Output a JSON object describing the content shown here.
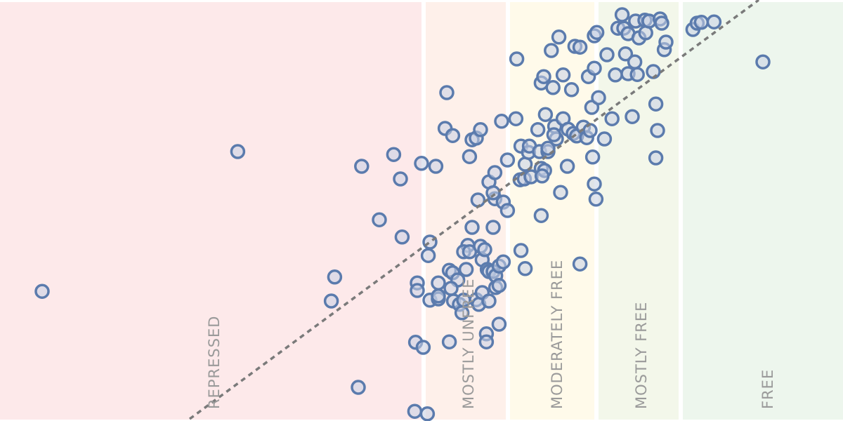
{
  "chart_data": {
    "type": "scatter",
    "title": "",
    "xlabel": "",
    "ylabel": "",
    "xlim": [
      0,
      100
    ],
    "ylim": [
      0,
      100
    ],
    "grid": false,
    "bands": [
      {
        "label": "REPRESSED",
        "from": 0,
        "to": 50,
        "color": "#fde9ea"
      },
      {
        "label": "MOSTLY UNFREE",
        "from": 50.5,
        "to": 60,
        "color": "#fef0ea"
      },
      {
        "label": "MODERATELY FREE",
        "from": 60.5,
        "to": 70.5,
        "color": "#fffaea"
      },
      {
        "label": "MOSTLY FREE",
        "from": 71,
        "to": 80.5,
        "color": "#f3f7ea"
      },
      {
        "label": "FREE",
        "from": 81,
        "to": 100,
        "color": "#edf6ed"
      }
    ],
    "trendline": {
      "x": [
        22.5,
        90
      ],
      "y": [
        0.5,
        100
      ]
    },
    "points": [
      [
        5.0,
        30.8
      ],
      [
        28.2,
        64.0
      ],
      [
        39.7,
        34.2
      ],
      [
        39.3,
        28.5
      ],
      [
        42.5,
        8.0
      ],
      [
        42.9,
        60.5
      ],
      [
        45.0,
        47.8
      ],
      [
        46.7,
        63.3
      ],
      [
        47.5,
        57.5
      ],
      [
        47.7,
        43.7
      ],
      [
        49.2,
        2.3
      ],
      [
        50.7,
        1.7
      ],
      [
        49.3,
        18.7
      ],
      [
        50.2,
        17.5
      ],
      [
        49.5,
        32.8
      ],
      [
        49.5,
        31.0
      ],
      [
        50.0,
        61.2
      ],
      [
        51.7,
        60.5
      ],
      [
        50.8,
        39.3
      ],
      [
        51.0,
        42.5
      ],
      [
        51.0,
        28.7
      ],
      [
        52.0,
        29.0
      ],
      [
        52.0,
        32.8
      ],
      [
        52.0,
        29.7
      ],
      [
        53.3,
        35.8
      ],
      [
        53.7,
        35.2
      ],
      [
        54.3,
        33.5
      ],
      [
        53.3,
        18.8
      ],
      [
        53.5,
        31.5
      ],
      [
        53.8,
        28.5
      ],
      [
        52.8,
        69.5
      ],
      [
        53.7,
        67.8
      ],
      [
        53.0,
        78.0
      ],
      [
        54.5,
        27.7
      ],
      [
        54.8,
        25.7
      ],
      [
        55.0,
        28.7
      ],
      [
        55.3,
        36.0
      ],
      [
        55.5,
        41.7
      ],
      [
        55.0,
        40.2
      ],
      [
        55.7,
        40.2
      ],
      [
        55.7,
        62.8
      ],
      [
        56.0,
        66.8
      ],
      [
        56.5,
        67.2
      ],
      [
        57.0,
        69.2
      ],
      [
        56.5,
        28.8
      ],
      [
        56.8,
        27.7
      ],
      [
        57.2,
        30.5
      ],
      [
        56.0,
        46.0
      ],
      [
        56.7,
        52.5
      ],
      [
        57.0,
        41.5
      ],
      [
        57.2,
        38.3
      ],
      [
        57.5,
        40.7
      ],
      [
        57.7,
        20.7
      ],
      [
        58.0,
        28.5
      ],
      [
        57.8,
        36.0
      ],
      [
        57.7,
        18.8
      ],
      [
        58.0,
        56.8
      ],
      [
        58.7,
        52.8
      ],
      [
        58.7,
        59.0
      ],
      [
        58.5,
        54.2
      ],
      [
        58.5,
        46.0
      ],
      [
        58.0,
        35.5
      ],
      [
        58.5,
        35.5
      ],
      [
        58.8,
        34.5
      ],
      [
        58.8,
        31.7
      ],
      [
        59.2,
        32.2
      ],
      [
        59.2,
        36.8
      ],
      [
        59.7,
        37.8
      ],
      [
        59.2,
        23.0
      ],
      [
        59.7,
        52.0
      ],
      [
        60.2,
        50.0
      ],
      [
        59.5,
        71.2
      ],
      [
        60.2,
        62.0
      ],
      [
        61.2,
        71.8
      ],
      [
        61.8,
        40.5
      ],
      [
        62.3,
        36.2
      ],
      [
        61.3,
        86.0
      ],
      [
        61.7,
        57.3
      ],
      [
        61.8,
        65.3
      ],
      [
        62.3,
        61.0
      ],
      [
        62.7,
        63.8
      ],
      [
        62.8,
        65.3
      ],
      [
        62.2,
        57.5
      ],
      [
        63.0,
        58.0
      ],
      [
        63.8,
        69.2
      ],
      [
        64.2,
        80.3
      ],
      [
        64.5,
        81.8
      ],
      [
        64.2,
        60.0
      ],
      [
        64.0,
        64.0
      ],
      [
        64.6,
        59.5
      ],
      [
        64.3,
        58.2
      ],
      [
        64.2,
        48.8
      ],
      [
        64.7,
        72.8
      ],
      [
        65.0,
        64.0
      ],
      [
        65.0,
        64.8
      ],
      [
        65.6,
        79.2
      ],
      [
        65.4,
        88.0
      ],
      [
        66.3,
        91.2
      ],
      [
        65.8,
        70.0
      ],
      [
        66.0,
        67.0
      ],
      [
        65.7,
        68.0
      ],
      [
        66.5,
        54.3
      ],
      [
        66.8,
        82.2
      ],
      [
        66.8,
        71.8
      ],
      [
        67.8,
        78.7
      ],
      [
        67.3,
        60.5
      ],
      [
        67.4,
        69.3
      ],
      [
        68.2,
        89.0
      ],
      [
        68.8,
        88.8
      ],
      [
        68.0,
        68.3
      ],
      [
        68.4,
        67.7
      ],
      [
        68.8,
        37.3
      ],
      [
        69.2,
        69.8
      ],
      [
        69.6,
        67.3
      ],
      [
        70.0,
        69.0
      ],
      [
        69.8,
        81.8
      ],
      [
        70.5,
        83.8
      ],
      [
        70.2,
        74.5
      ],
      [
        70.5,
        91.5
      ],
      [
        70.8,
        92.3
      ],
      [
        70.3,
        62.7
      ],
      [
        70.5,
        56.3
      ],
      [
        70.7,
        52.7
      ],
      [
        71.0,
        76.8
      ],
      [
        71.7,
        67.0
      ],
      [
        72.0,
        87.0
      ],
      [
        72.6,
        71.8
      ],
      [
        73.0,
        82.2
      ],
      [
        73.3,
        93.3
      ],
      [
        73.8,
        96.5
      ],
      [
        74.0,
        93.3
      ],
      [
        74.5,
        92.0
      ],
      [
        74.2,
        87.2
      ],
      [
        74.5,
        82.5
      ],
      [
        75.0,
        72.3
      ],
      [
        75.3,
        85.3
      ],
      [
        75.4,
        95.0
      ],
      [
        75.6,
        82.3
      ],
      [
        75.8,
        91.0
      ],
      [
        76.6,
        92.2
      ],
      [
        76.5,
        95.2
      ],
      [
        77.0,
        95.0
      ],
      [
        77.5,
        83.0
      ],
      [
        77.8,
        75.3
      ],
      [
        77.8,
        62.5
      ],
      [
        78.0,
        69.0
      ],
      [
        78.3,
        95.5
      ],
      [
        78.8,
        88.2
      ],
      [
        79.0,
        90.0
      ],
      [
        78.5,
        94.5
      ],
      [
        82.2,
        93.0
      ],
      [
        82.7,
        94.5
      ],
      [
        83.2,
        94.7
      ],
      [
        84.7,
        94.8
      ],
      [
        90.5,
        85.3
      ]
    ]
  }
}
